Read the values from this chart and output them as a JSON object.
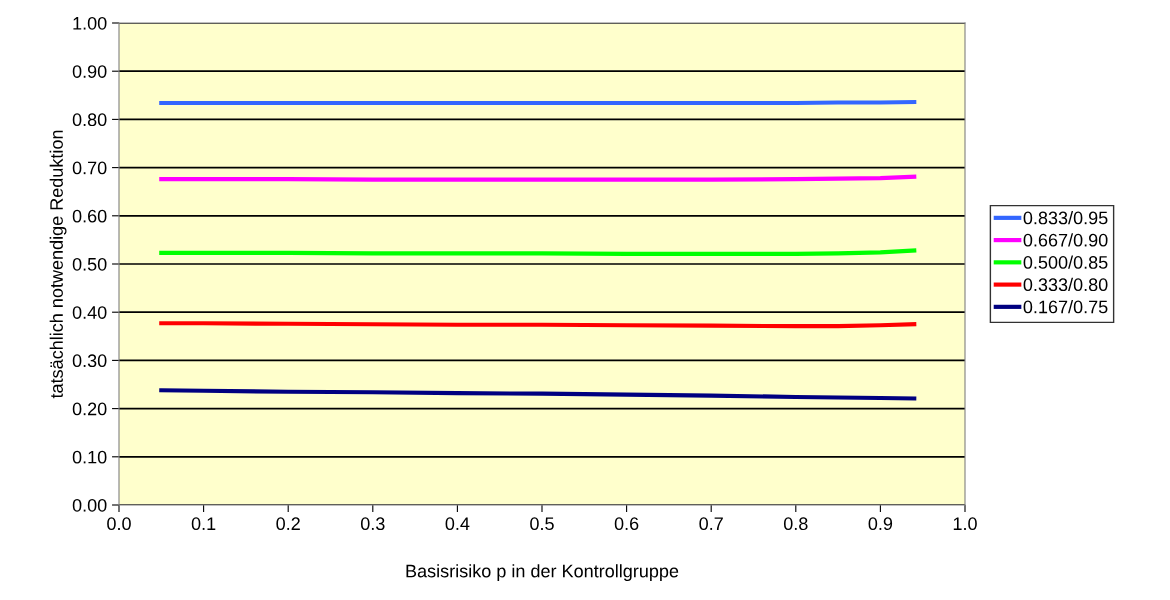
{
  "chart_data": {
    "type": "line",
    "xlabel": "Basisrisiko p in der Kontrollgruppe",
    "ylabel": "tatsächlich notwendige Reduktion",
    "x": [
      0.05,
      0.1,
      0.2,
      0.3,
      0.4,
      0.5,
      0.6,
      0.7,
      0.8,
      0.85,
      0.9,
      0.94
    ],
    "series": [
      {
        "name": "0.833/0.95",
        "color": "#3366ff",
        "values": [
          0.834,
          0.834,
          0.834,
          0.834,
          0.834,
          0.834,
          0.834,
          0.834,
          0.834,
          0.835,
          0.835,
          0.836
        ]
      },
      {
        "name": "0.667/0.90",
        "color": "#ff00ff",
        "values": [
          0.676,
          0.676,
          0.676,
          0.675,
          0.675,
          0.675,
          0.675,
          0.675,
          0.676,
          0.677,
          0.678,
          0.681
        ]
      },
      {
        "name": "0.500/0.85",
        "color": "#00ff00",
        "values": [
          0.523,
          0.523,
          0.523,
          0.522,
          0.522,
          0.522,
          0.521,
          0.521,
          0.521,
          0.522,
          0.524,
          0.528
        ]
      },
      {
        "name": "0.333/0.80",
        "color": "#ff0000",
        "values": [
          0.377,
          0.377,
          0.376,
          0.375,
          0.374,
          0.374,
          0.373,
          0.372,
          0.371,
          0.371,
          0.373,
          0.375
        ]
      },
      {
        "name": "0.167/0.75",
        "color": "#000080",
        "values": [
          0.238,
          0.237,
          0.235,
          0.234,
          0.232,
          0.231,
          0.229,
          0.227,
          0.224,
          0.223,
          0.222,
          0.221
        ]
      }
    ],
    "xlim": [
      0.0,
      1.0
    ],
    "ylim": [
      0.0,
      1.0
    ],
    "xticks": [
      {
        "value": 0,
        "label": "0.0"
      },
      0.1,
      0.2,
      0.3,
      0.4,
      0.5,
      0.6,
      0.7,
      0.8,
      0.9,
      {
        "value": 1,
        "label": "1.0"
      }
    ],
    "yticks": [
      {
        "value": 0,
        "label": "0.00"
      },
      {
        "value": 0.1,
        "label": "0.10"
      },
      {
        "value": 0.2,
        "label": "0.20"
      },
      {
        "value": 0.3,
        "label": "0.30"
      },
      {
        "value": 0.4,
        "label": "0.40"
      },
      {
        "value": 0.5,
        "label": "0.50"
      },
      {
        "value": 0.6,
        "label": "0.60"
      },
      {
        "value": 0.7,
        "label": "0.70"
      },
      {
        "value": 0.8,
        "label": "0.80"
      },
      {
        "value": 0.9,
        "label": "0.90"
      },
      {
        "value": 1,
        "label": "1.00"
      }
    ],
    "grid": "y",
    "legend": "right",
    "marker": "none",
    "line_style": "solid"
  }
}
